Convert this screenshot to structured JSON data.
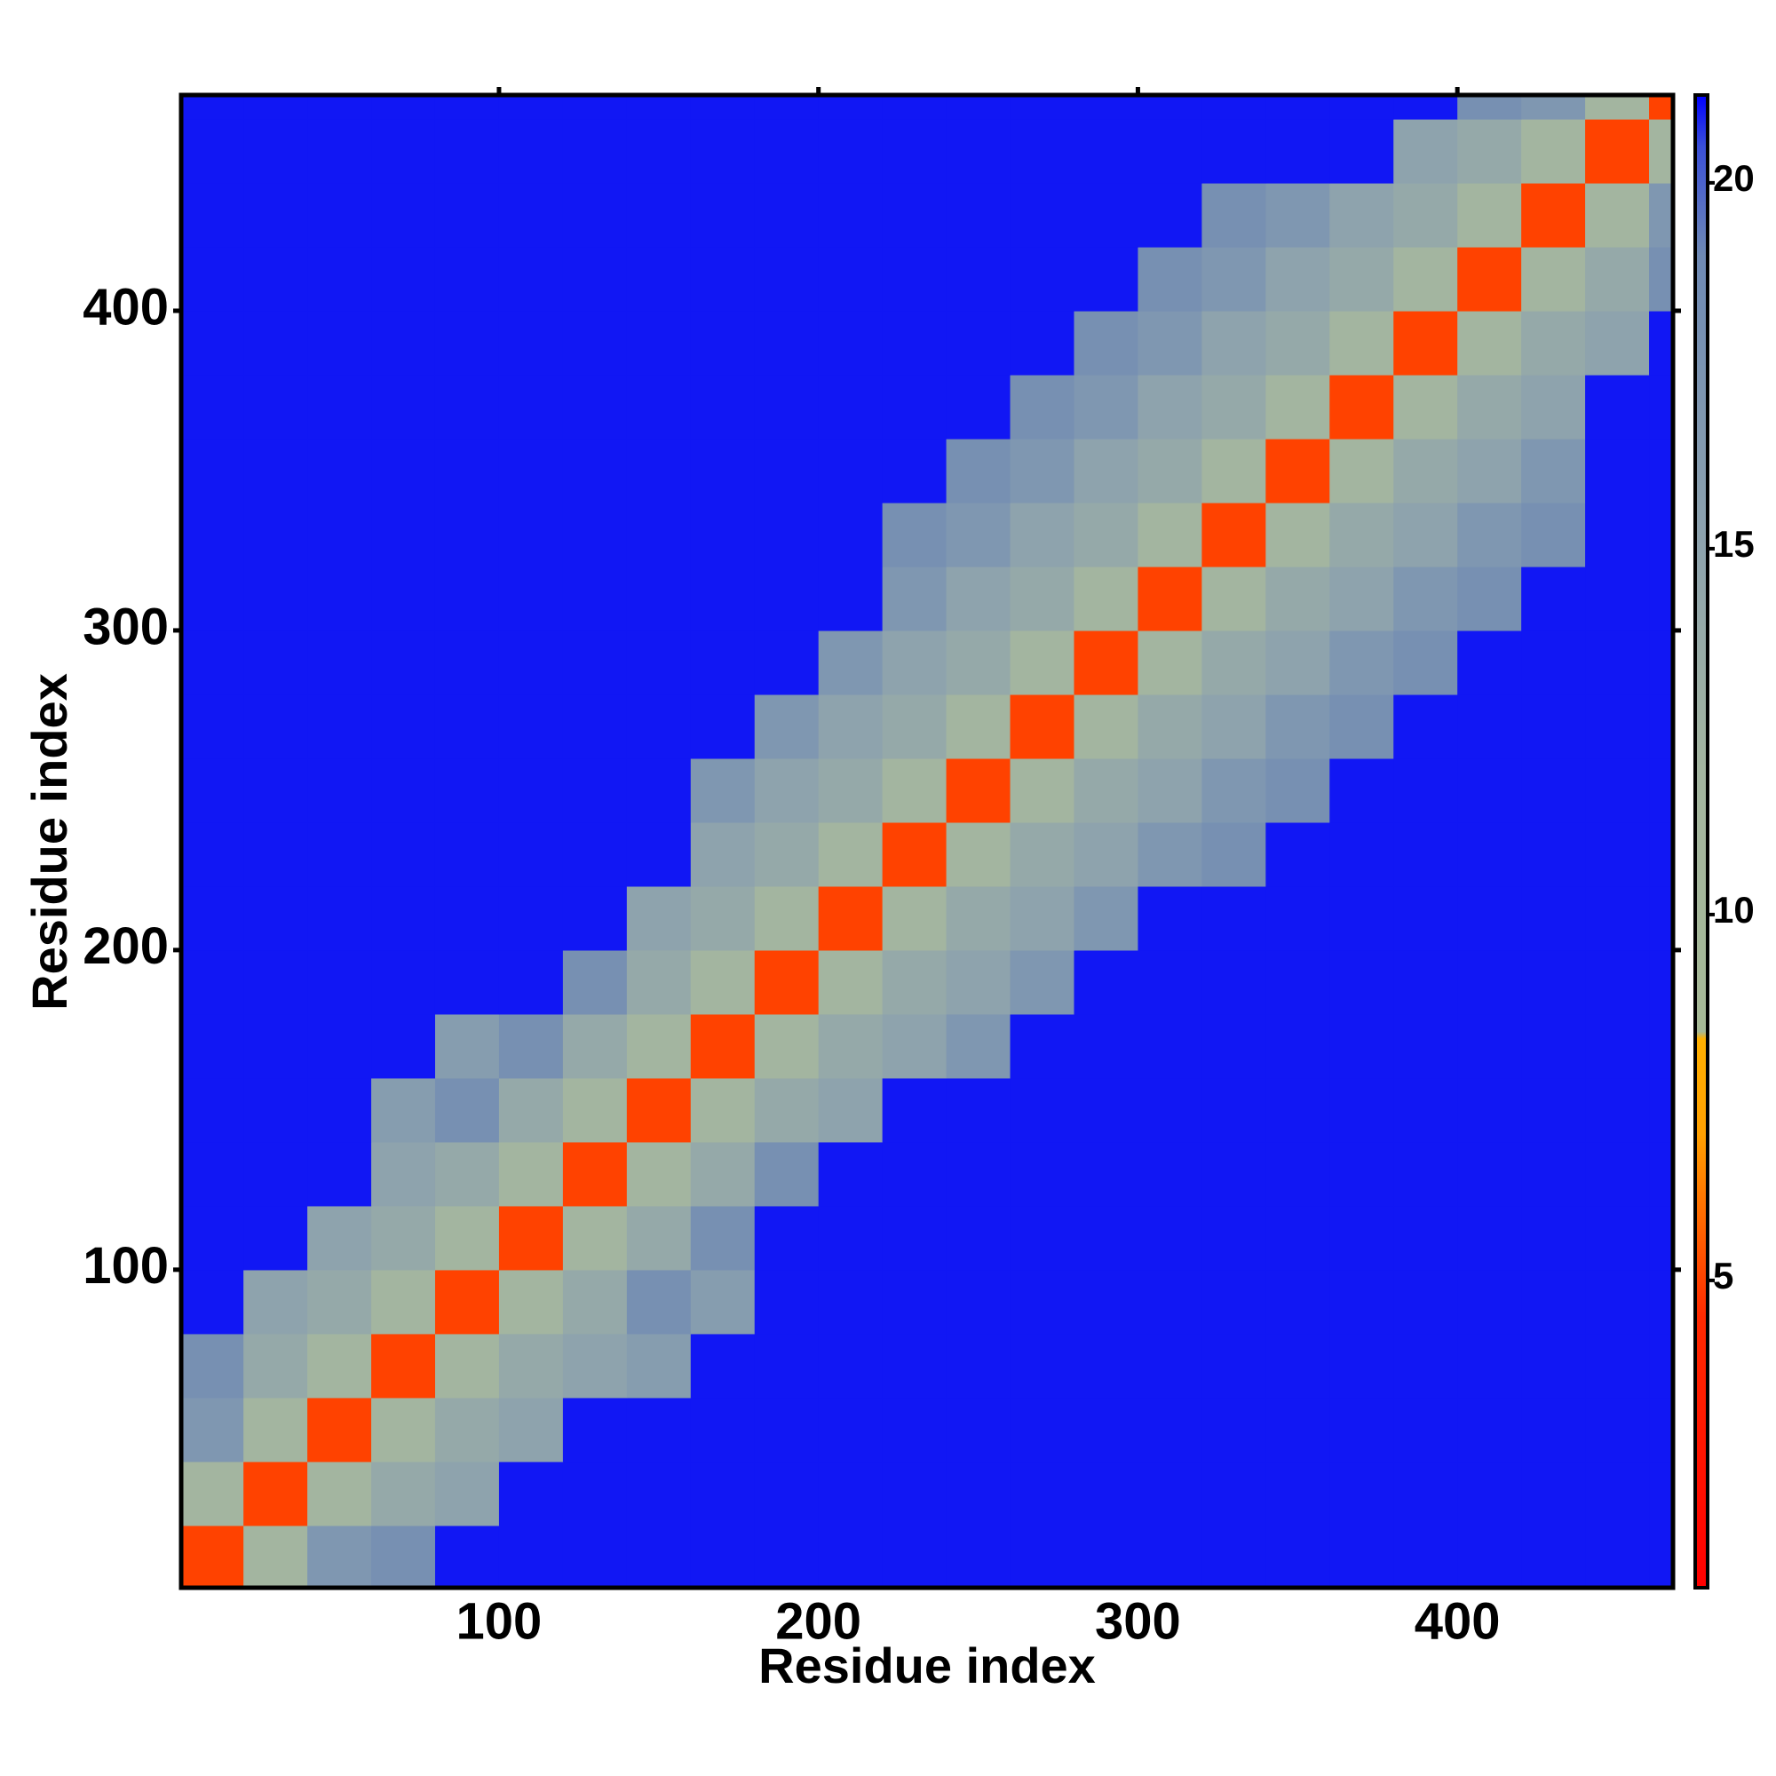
{
  "chart_data": {
    "type": "heatmap",
    "x_label": "Residue index",
    "y_label": "Residue index",
    "xlim": [
      0.5,
      467.5
    ],
    "ylim": [
      0.5,
      467.5
    ],
    "xticks": [
      100,
      200,
      300,
      400
    ],
    "yticks": [
      100,
      200,
      300,
      400
    ],
    "clim": [
      0.8,
      21.2
    ],
    "cticks": [
      5,
      10,
      15,
      20
    ],
    "colorscale": [
      [
        0.8,
        "#ff0000"
      ],
      [
        4.5,
        "#ff2a00"
      ],
      [
        7,
        "#ffa000"
      ],
      [
        8.3,
        "#ffb000"
      ],
      [
        8.4,
        "#a6b996"
      ],
      [
        12,
        "#a3b5a0"
      ],
      [
        15,
        "#8ea3ad"
      ],
      [
        19,
        "#6f8ab4"
      ],
      [
        20.5,
        "#3a4fd8"
      ],
      [
        21.2,
        "#0000ff"
      ]
    ],
    "bin_edges": [
      0.5,
      20,
      40,
      60,
      80,
      100,
      120,
      140,
      160,
      180,
      200,
      220,
      240,
      260,
      280,
      300,
      320,
      340,
      360,
      380,
      400,
      420,
      440,
      460,
      467.5
    ],
    "values": [
      [
        5,
        12,
        17,
        18,
        21,
        21,
        21,
        21,
        21,
        21,
        21,
        21,
        21,
        21,
        21,
        21,
        21,
        21,
        21,
        21,
        21,
        21,
        21,
        21
      ],
      [
        12,
        5,
        12,
        14,
        15,
        21,
        21,
        21,
        21,
        21,
        21,
        21,
        21,
        21,
        21,
        21,
        21,
        21,
        21,
        21,
        21,
        21,
        21,
        21
      ],
      [
        17,
        12,
        5,
        12,
        14,
        15,
        21,
        21,
        21,
        21,
        21,
        21,
        21,
        21,
        21,
        21,
        21,
        21,
        21,
        21,
        21,
        21,
        21,
        21
      ],
      [
        18,
        14,
        12,
        5,
        12,
        14,
        15,
        16,
        21,
        21,
        21,
        21,
        21,
        21,
        21,
        21,
        21,
        21,
        21,
        21,
        21,
        21,
        21,
        21
      ],
      [
        21,
        15,
        14,
        12,
        5,
        12,
        14,
        18,
        16,
        21,
        21,
        21,
        21,
        21,
        21,
        21,
        21,
        21,
        21,
        21,
        21,
        21,
        21,
        21
      ],
      [
        21,
        21,
        15,
        14,
        12,
        5,
        12,
        14,
        18,
        21,
        21,
        21,
        21,
        21,
        21,
        21,
        21,
        21,
        21,
        21,
        21,
        21,
        21,
        21
      ],
      [
        21,
        21,
        21,
        15,
        14,
        12,
        5,
        12,
        14,
        18,
        21,
        21,
        21,
        21,
        21,
        21,
        21,
        21,
        21,
        21,
        21,
        21,
        21,
        21
      ],
      [
        21,
        21,
        21,
        16,
        18,
        14,
        12,
        5,
        12,
        14,
        15,
        21,
        21,
        21,
        21,
        21,
        21,
        21,
        21,
        21,
        21,
        21,
        21,
        21
      ],
      [
        21,
        21,
        21,
        21,
        16,
        18,
        14,
        12,
        5,
        12,
        14,
        15,
        17,
        21,
        21,
        21,
        21,
        21,
        21,
        21,
        21,
        21,
        21,
        21
      ],
      [
        21,
        21,
        21,
        21,
        21,
        21,
        18,
        14,
        12,
        5,
        12,
        14,
        15,
        17,
        21,
        21,
        21,
        21,
        21,
        21,
        21,
        21,
        21,
        21
      ],
      [
        21,
        21,
        21,
        21,
        21,
        21,
        21,
        15,
        14,
        12,
        5,
        12,
        14,
        15,
        17,
        21,
        21,
        21,
        21,
        21,
        21,
        21,
        21,
        21
      ],
      [
        21,
        21,
        21,
        21,
        21,
        21,
        21,
        21,
        15,
        14,
        12,
        5,
        12,
        14,
        15,
        17,
        18,
        21,
        21,
        21,
        21,
        21,
        21,
        21
      ],
      [
        21,
        21,
        21,
        21,
        21,
        21,
        21,
        21,
        17,
        15,
        14,
        12,
        5,
        12,
        14,
        15,
        17,
        18,
        21,
        21,
        21,
        21,
        21,
        21
      ],
      [
        21,
        21,
        21,
        21,
        21,
        21,
        21,
        21,
        21,
        17,
        15,
        14,
        12,
        5,
        12,
        14,
        15,
        17,
        18,
        21,
        21,
        21,
        21,
        21
      ],
      [
        21,
        21,
        21,
        21,
        21,
        21,
        21,
        21,
        21,
        21,
        17,
        15,
        14,
        12,
        5,
        12,
        14,
        15,
        17,
        18,
        21,
        21,
        21,
        21
      ],
      [
        21,
        21,
        21,
        21,
        21,
        21,
        21,
        21,
        21,
        21,
        21,
        17,
        15,
        14,
        12,
        5,
        12,
        14,
        15,
        17,
        18,
        21,
        21,
        21
      ],
      [
        21,
        21,
        21,
        21,
        21,
        21,
        21,
        21,
        21,
        21,
        21,
        18,
        17,
        15,
        14,
        12,
        5,
        12,
        14,
        15,
        17,
        18,
        21,
        21
      ],
      [
        21,
        21,
        21,
        21,
        21,
        21,
        21,
        21,
        21,
        21,
        21,
        21,
        18,
        17,
        15,
        14,
        12,
        5,
        12,
        14,
        15,
        17,
        21,
        21
      ],
      [
        21,
        21,
        21,
        21,
        21,
        21,
        21,
        21,
        21,
        21,
        21,
        21,
        21,
        18,
        17,
        15,
        14,
        12,
        5,
        12,
        14,
        15,
        21,
        21
      ],
      [
        21,
        21,
        21,
        21,
        21,
        21,
        21,
        21,
        21,
        21,
        21,
        21,
        21,
        21,
        18,
        17,
        15,
        14,
        12,
        5,
        12,
        14,
        15,
        21
      ],
      [
        21,
        21,
        21,
        21,
        21,
        21,
        21,
        21,
        21,
        21,
        21,
        21,
        21,
        21,
        21,
        18,
        17,
        15,
        14,
        12,
        5,
        12,
        14,
        18
      ],
      [
        21,
        21,
        21,
        21,
        21,
        21,
        21,
        21,
        21,
        21,
        21,
        21,
        21,
        21,
        21,
        21,
        18,
        17,
        15,
        14,
        12,
        5,
        12,
        17
      ],
      [
        21,
        21,
        21,
        21,
        21,
        21,
        21,
        21,
        21,
        21,
        21,
        21,
        21,
        21,
        21,
        21,
        21,
        21,
        21,
        15,
        14,
        12,
        5,
        12
      ],
      [
        21,
        21,
        21,
        21,
        21,
        21,
        21,
        21,
        21,
        21,
        21,
        21,
        21,
        21,
        21,
        21,
        21,
        21,
        21,
        21,
        18,
        17,
        12,
        5
      ]
    ]
  }
}
